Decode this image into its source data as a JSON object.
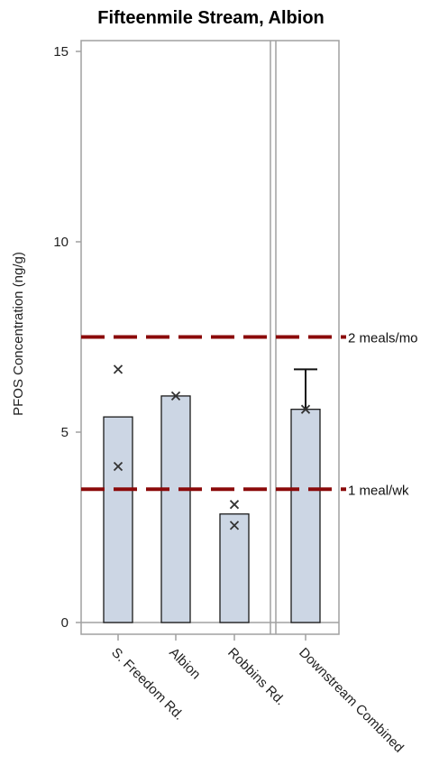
{
  "chart_data": {
    "type": "bar",
    "title": "Fifteenmile Stream, Albion",
    "ylabel": "PFOS Concentration (ng/g)",
    "xlabel": "",
    "ylim": [
      0,
      15
    ],
    "yticks": [
      0,
      5,
      10,
      15
    ],
    "categories": [
      "S. Freedom Rd.",
      "Albion",
      "Robbins Rd.",
      "Downstream Combined"
    ],
    "values": [
      5.4,
      5.95,
      2.85,
      5.6
    ],
    "error_upper": [
      null,
      null,
      null,
      6.65
    ],
    "points": [
      {
        "category": "S. Freedom Rd.",
        "y": 6.65
      },
      {
        "category": "S. Freedom Rd.",
        "y": 4.1
      },
      {
        "category": "Albion",
        "y": 5.95
      },
      {
        "category": "Robbins Rd.",
        "y": 3.1
      },
      {
        "category": "Robbins Rd.",
        "y": 2.55
      },
      {
        "category": "Downstream Combined",
        "y": 5.6
      }
    ],
    "reference_lines": [
      {
        "y": 7.5,
        "label": "2 meals/mo"
      },
      {
        "y": 3.5,
        "label": "1 meal/wk"
      }
    ],
    "grid": false,
    "colors": {
      "bar_fill": "#ccd6e4",
      "bar_stroke": "#1a1a1a",
      "reference": "#8b0a0a",
      "frame": "#a0a0a0",
      "marker": "#333333"
    }
  }
}
